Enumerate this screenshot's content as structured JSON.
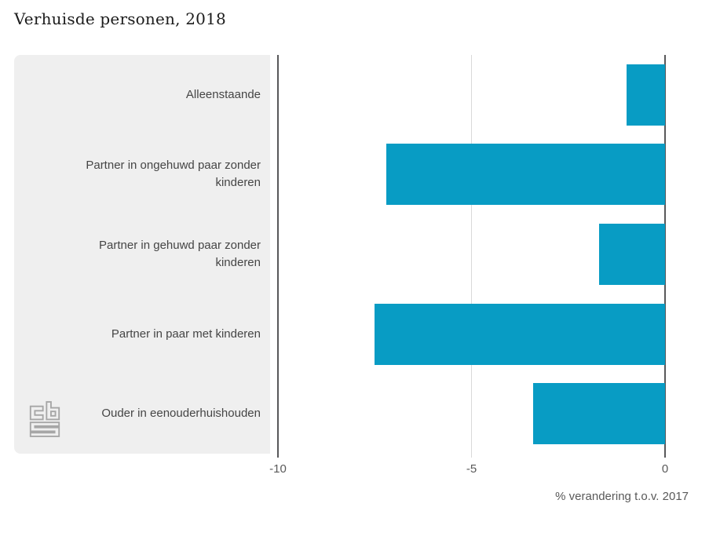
{
  "title": "Verhuisde personen, 2018",
  "colors": {
    "bar": "#089cc4",
    "panel": "#efefef",
    "axis_dark": "#58585a",
    "grid_light": "#d9d9d9",
    "title_text": "#1c1c1c",
    "category_text": "#454545",
    "tick_text": "#595959",
    "logo_gray": "#a6a6a6"
  },
  "chart_data": {
    "type": "bar",
    "orientation": "horizontal",
    "title": "Verhuisde personen, 2018",
    "categories": [
      "Alleenstaande",
      "Partner in ongehuwd paar zonder kinderen",
      "Partner in gehuwd paar zonder kinderen",
      "Partner in paar met kinderen",
      "Ouder in eenouderhuishouden"
    ],
    "values": [
      -1.0,
      -7.2,
      -1.7,
      -7.5,
      -3.4
    ],
    "xlabel": "% verandering t.o.v. 2017",
    "ylabel": "",
    "xlim": [
      -10,
      0
    ],
    "xticks": [
      -10,
      -5,
      0
    ],
    "xtick_labels": [
      "-10",
      "-5",
      "0"
    ],
    "grid": "single light vertical gridline at -5; dark axis lines at -10 and 0",
    "legend": "none"
  },
  "branding": {
    "logo": "cbs-logo"
  }
}
